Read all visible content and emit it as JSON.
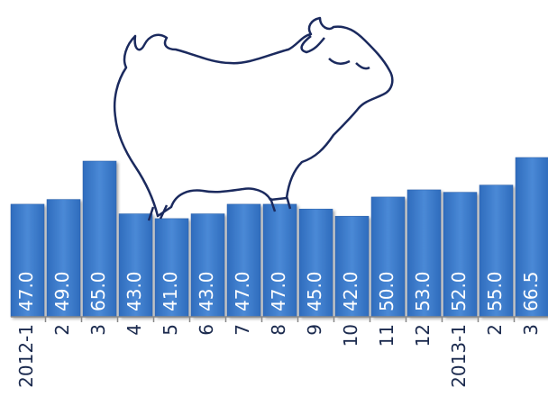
{
  "chart_data": {
    "type": "bar",
    "categories": [
      "2012-1",
      "2",
      "3",
      "4",
      "5",
      "6",
      "7",
      "8",
      "9",
      "10",
      "11",
      "12",
      "2013-1",
      "2",
      "3"
    ],
    "values": [
      47,
      49,
      65,
      43,
      41,
      43,
      47,
      47,
      45,
      42,
      50,
      53,
      52,
      55,
      66.5
    ],
    "value_labels": [
      "47.0",
      "49.0",
      "65.0",
      "43.0",
      "41.0",
      "43.0",
      "47.0",
      "47.0",
      "45.0",
      "42.0",
      "50.0",
      "53.0",
      "52.0",
      "55.0",
      "66.5"
    ],
    "color": "#3a7ac8"
  }
}
